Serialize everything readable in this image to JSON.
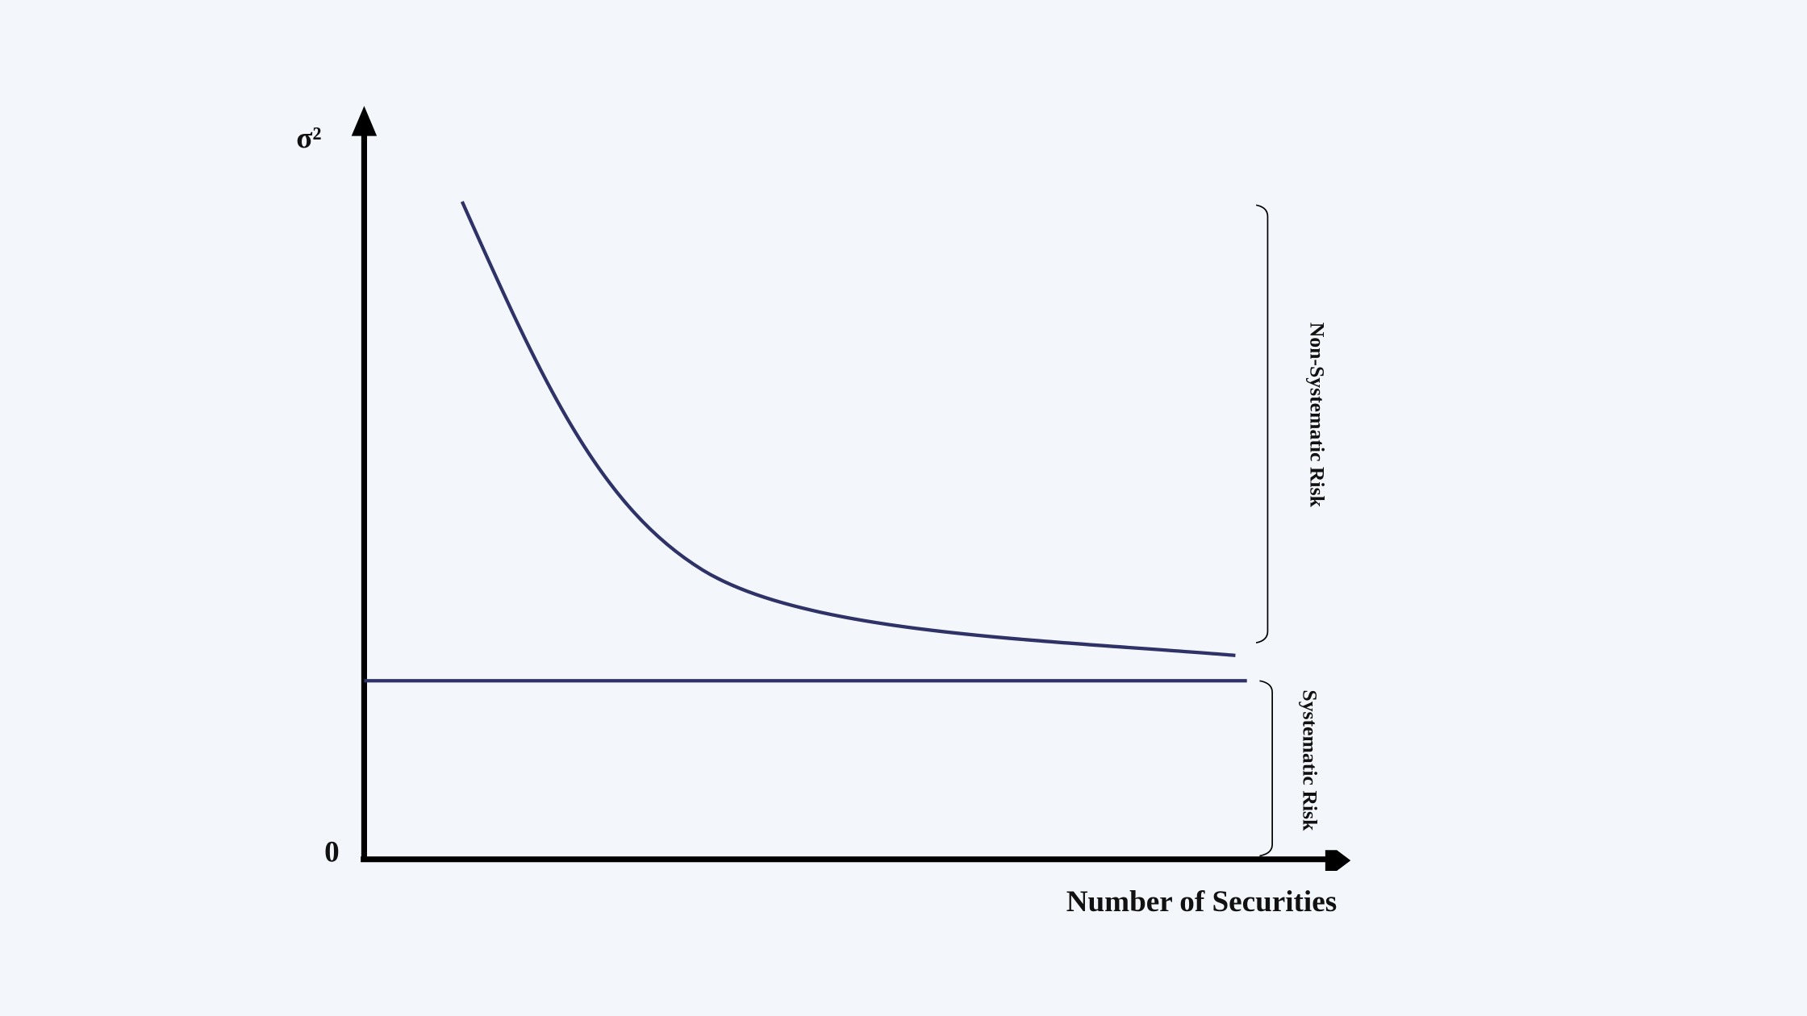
{
  "axes": {
    "y_label": "σ²",
    "origin_label": "0",
    "x_label": "Number of Securities"
  },
  "annotations": {
    "non_systematic": "Non-Systematic Risk",
    "systematic": "Systematic Risk"
  }
}
